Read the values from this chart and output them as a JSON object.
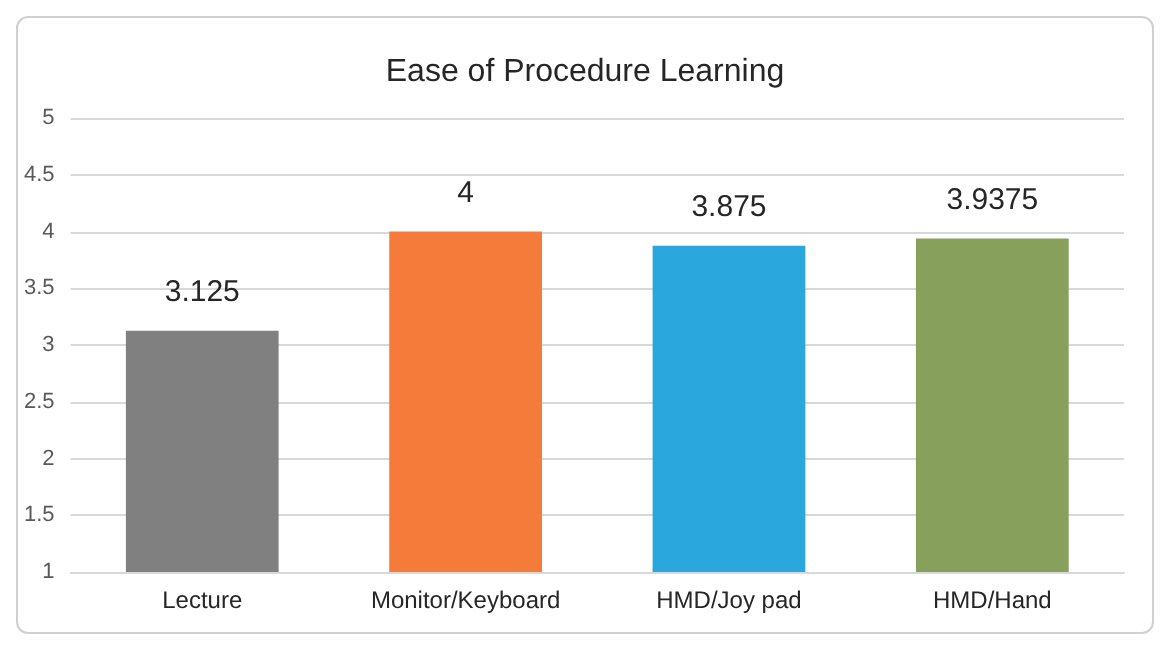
{
  "chart_data": {
    "type": "bar",
    "title": "Ease of Procedure Learning",
    "categories": [
      "Lecture",
      "Monitor/Keyboard",
      "HMD/Joy pad",
      "HMD/Hand"
    ],
    "values": [
      3.125,
      4,
      3.875,
      3.9375
    ],
    "colors": [
      "#808080",
      "#f47b3a",
      "#2aa8de",
      "#87a05b"
    ],
    "ylim": [
      1,
      5
    ],
    "yticks": [
      1,
      1.5,
      2,
      2.5,
      3,
      3.5,
      4,
      4.5,
      5
    ],
    "grid": "y",
    "data_labels": true
  }
}
